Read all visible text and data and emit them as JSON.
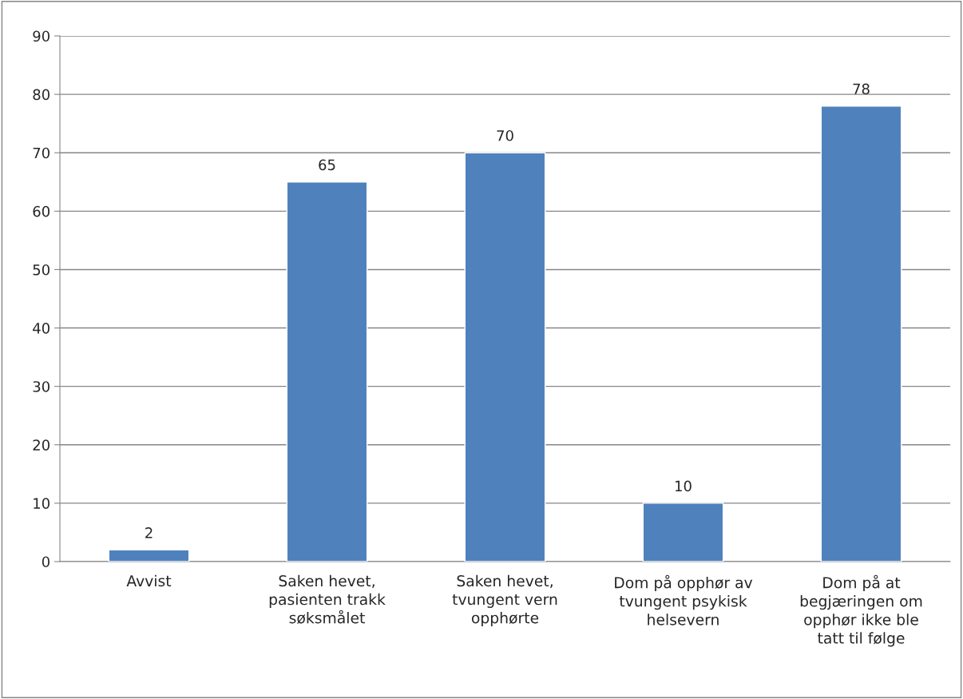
{
  "chart_data": {
    "type": "bar",
    "categories": [
      "Avvist",
      "Saken hevet,\npasienten trakk\nsøksmålet",
      "Saken hevet,\ntvungent vern\nopphørte",
      "Dom på opphør av\ntvungent psykisk\nhelsevern",
      "Dom på at\nbegjæringen om\nopphør ikke ble\ntatt til følge"
    ],
    "values": [
      2,
      65,
      70,
      10,
      78
    ],
    "color": "#4f81bd",
    "ylim": [
      0,
      90
    ],
    "yticks": [
      0,
      10,
      20,
      30,
      40,
      50,
      60,
      70,
      80,
      90
    ],
    "grid": "y",
    "data_labels": true
  }
}
